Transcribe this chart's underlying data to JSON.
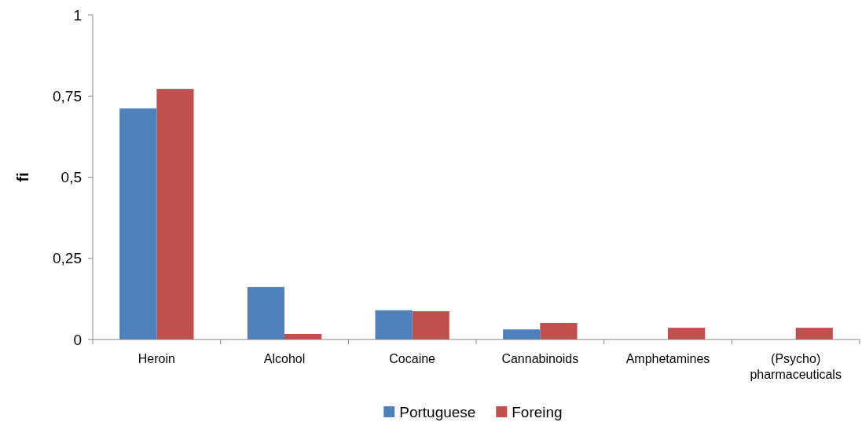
{
  "chart_data": {
    "type": "bar",
    "ylabel": "fi",
    "categories": [
      "Heroin",
      "Alcohol",
      "Cocaine",
      "Cannabinoids",
      "Amphetamines",
      "(Psycho) pharmaceuticals"
    ],
    "series": [
      {
        "name": "Portuguese",
        "color": "#4f81bd",
        "values": [
          0.712,
          0.162,
          0.09,
          0.031,
          0,
          0
        ]
      },
      {
        "name": "Foreing",
        "color": "#c0504d",
        "values": [
          0.772,
          0.017,
          0.087,
          0.051,
          0.036,
          0.036
        ]
      }
    ],
    "ylim": [
      0,
      1
    ],
    "yticks": [
      0,
      {
        "value": 0.25,
        "label": "0,25"
      },
      {
        "value": 0.5,
        "label": "0,5"
      },
      {
        "value": 0.75,
        "label": "0,75"
      },
      1
    ],
    "grid": false,
    "legend": "bottom"
  }
}
